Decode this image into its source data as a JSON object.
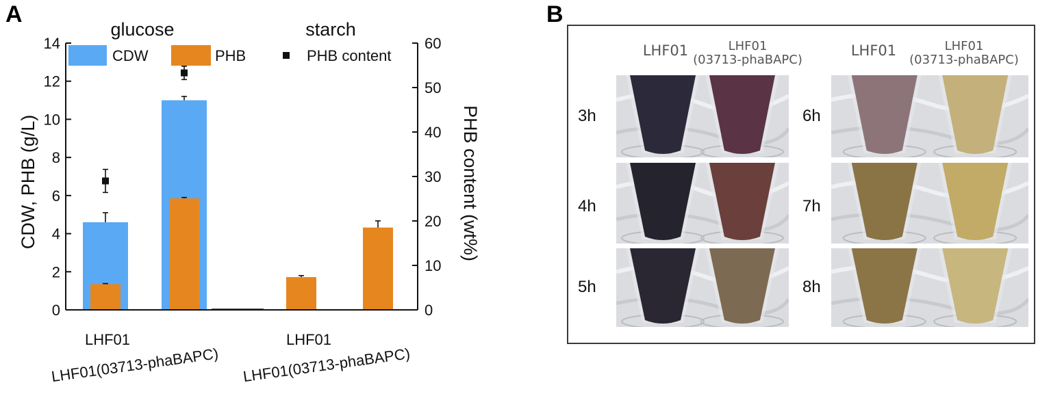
{
  "panel_a": {
    "letter": "A"
  },
  "panel_b": {
    "letter": "B",
    "headers": [
      {
        "id": "l1",
        "lines": [
          "LHF01"
        ]
      },
      {
        "id": "l2",
        "lines": [
          "LHF01",
          "(03713-phaBAPC)"
        ]
      },
      {
        "id": "r1",
        "lines": [
          "LHF01"
        ]
      },
      {
        "id": "r2",
        "lines": [
          "LHF01",
          "(03713-phaBAPC)"
        ]
      }
    ],
    "time_labels": {
      "left": [
        "3h",
        "4h",
        "5h"
      ],
      "right": [
        "6h",
        "7h",
        "8h"
      ]
    },
    "tube_colors": {
      "left": [
        [
          "#2c2a3a",
          "#5a3344"
        ],
        [
          "#25242e",
          "#6a3f3c"
        ],
        [
          "#2a2733",
          "#7d6a52"
        ]
      ],
      "right": [
        [
          "#8c7479",
          "#c4b07a"
        ],
        [
          "#8a7445",
          "#c2ab66"
        ],
        [
          "#8b7547",
          "#c7b67e"
        ]
      ]
    }
  },
  "chart_data": {
    "type": "bar",
    "group_labels": [
      "glucose",
      "starch"
    ],
    "categories": [
      "LHF01",
      "LHF01(03713-phaBAPC)",
      "LHF01",
      "LHF01(03713-phaBAPC)"
    ],
    "y_axis_left": {
      "label": "CDW, PHB (g/L)",
      "ylim": [
        0,
        14
      ],
      "ticks": [
        0,
        2,
        4,
        6,
        8,
        10,
        12,
        14
      ]
    },
    "y_axis_right": {
      "label": "PHB content (wt%)",
      "ylim": [
        0,
        60
      ],
      "ticks": [
        0,
        10,
        20,
        30,
        40,
        50,
        60
      ]
    },
    "legend": {
      "placement": "top",
      "entries": [
        "CDW",
        "PHB",
        "PHB content"
      ]
    },
    "series": [
      {
        "name": "CDW",
        "axis": "left",
        "color": "#5aa9f5",
        "values": [
          4.6,
          11.0,
          null,
          null
        ],
        "errors": [
          0.5,
          0.2,
          null,
          null
        ]
      },
      {
        "name": "PHB",
        "axis": "left",
        "color": "#e6861f",
        "values": [
          1.35,
          5.85,
          1.72,
          4.32
        ],
        "errors": [
          0.03,
          0.05,
          0.08,
          0.35
        ]
      },
      {
        "name": "PHB content",
        "axis": "right",
        "marker": "square",
        "color": "#111111",
        "values": [
          29.0,
          53.3,
          null,
          null
        ],
        "errors": [
          2.6,
          1.5,
          null,
          null
        ]
      }
    ]
  }
}
